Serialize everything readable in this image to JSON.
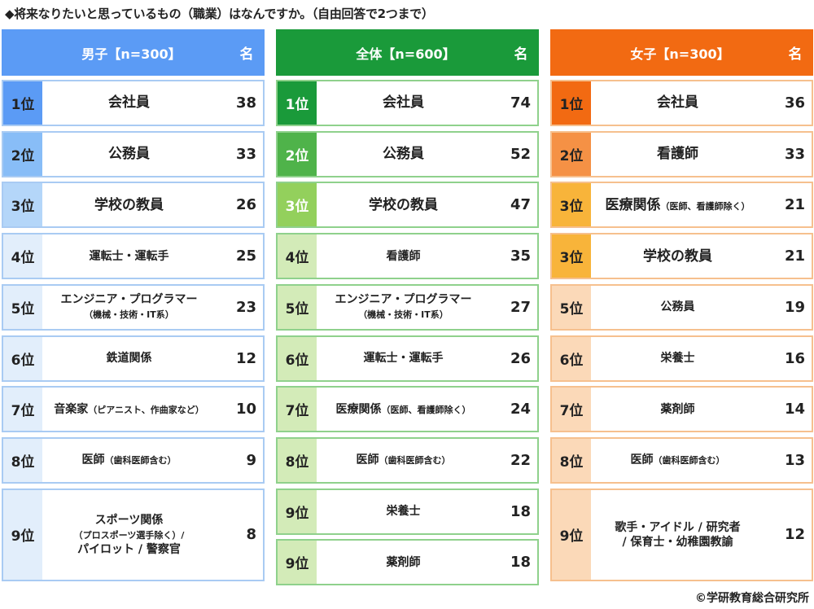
{
  "title": "◆将来なりたいと思っているもの（職業）はなんですか。（自由回答で2つまで）",
  "copyright": "©学研教育総合研究所",
  "columns": [
    {
      "key": "boys",
      "header": "男子【n=300】",
      "unit": "名",
      "header_color": "#5b9bf5",
      "border_color": "#a9cbf3",
      "rows": [
        {
          "rank": "1位",
          "job": "会社員",
          "sub": "",
          "count": "38",
          "rank_bg": "#5b9bf5",
          "rank_fg": "#222",
          "big": true
        },
        {
          "rank": "2位",
          "job": "公務員",
          "sub": "",
          "count": "33",
          "rank_bg": "#88bdf7",
          "rank_fg": "#222",
          "big": true
        },
        {
          "rank": "3位",
          "job": "学校の教員",
          "sub": "",
          "count": "26",
          "rank_bg": "#b4d6f9",
          "rank_fg": "#222",
          "big": true
        },
        {
          "rank": "4位",
          "job": "運転士・運転手",
          "sub": "",
          "count": "25",
          "rank_bg": "#e2eefb",
          "rank_fg": "#222",
          "big": false
        },
        {
          "rank": "5位",
          "job": "エンジニア・プログラマー",
          "sub": "（機械・技術・IT系）",
          "count": "23",
          "rank_bg": "#e2eefb",
          "rank_fg": "#222",
          "big": false
        },
        {
          "rank": "6位",
          "job": "鉄道関係",
          "sub": "",
          "count": "12",
          "rank_bg": "#e2eefb",
          "rank_fg": "#222",
          "big": false
        },
        {
          "rank": "7位",
          "job": "音楽家",
          "sub": "（ピアニスト、作曲家など）",
          "count": "10",
          "rank_bg": "#e2eefb",
          "rank_fg": "#222",
          "big": false,
          "inline_sub": true
        },
        {
          "rank": "8位",
          "job": "医師",
          "sub": "（歯科医師含む）",
          "count": "9",
          "rank_bg": "#e2eefb",
          "rank_fg": "#222",
          "big": false,
          "inline_sub": true
        },
        {
          "rank": "9位",
          "job": "スポーツ関係",
          "sub": "（プロスポーツ選手除く）/",
          "sub2": "パイロット / 警察官",
          "count": "8",
          "rank_bg": "#e2eefb",
          "rank_fg": "#222",
          "big": false,
          "tall": true
        }
      ]
    },
    {
      "key": "all",
      "header": "全体【n=600】",
      "unit": "名",
      "header_color": "#1a9a3a",
      "border_color": "#8fd18c",
      "rows": [
        {
          "rank": "1位",
          "job": "会社員",
          "sub": "",
          "count": "74",
          "rank_bg": "#1a9a3a",
          "rank_fg": "#ffffff",
          "big": true
        },
        {
          "rank": "2位",
          "job": "公務員",
          "sub": "",
          "count": "52",
          "rank_bg": "#4fb34a",
          "rank_fg": "#ffffff",
          "big": true
        },
        {
          "rank": "3位",
          "job": "学校の教員",
          "sub": "",
          "count": "47",
          "rank_bg": "#93d05c",
          "rank_fg": "#ffffff",
          "big": true
        },
        {
          "rank": "4位",
          "job": "看護師",
          "sub": "",
          "count": "35",
          "rank_bg": "#d3ebb8",
          "rank_fg": "#222",
          "big": false
        },
        {
          "rank": "5位",
          "job": "エンジニア・プログラマー",
          "sub": "（機械・技術・IT系）",
          "count": "27",
          "rank_bg": "#d3ebb8",
          "rank_fg": "#222",
          "big": false
        },
        {
          "rank": "6位",
          "job": "運転士・運転手",
          "sub": "",
          "count": "26",
          "rank_bg": "#d3ebb8",
          "rank_fg": "#222",
          "big": false
        },
        {
          "rank": "7位",
          "job": "医療関係",
          "sub": "（医師、看護師除く）",
          "count": "24",
          "rank_bg": "#d3ebb8",
          "rank_fg": "#222",
          "big": false,
          "inline_sub": true
        },
        {
          "rank": "8位",
          "job": "医師",
          "sub": "（歯科医師含む）",
          "count": "22",
          "rank_bg": "#d3ebb8",
          "rank_fg": "#222",
          "big": false,
          "inline_sub": true
        },
        {
          "rank": "9位",
          "job": "栄養士",
          "sub": "",
          "count": "18",
          "rank_bg": "#d3ebb8",
          "rank_fg": "#222",
          "big": false
        },
        {
          "rank": "9位",
          "job": "薬剤師",
          "sub": "",
          "count": "18",
          "rank_bg": "#d3ebb8",
          "rank_fg": "#222",
          "big": false
        }
      ]
    },
    {
      "key": "girls",
      "header": "女子【n=300】",
      "unit": "名",
      "header_color": "#f26a12",
      "border_color": "#f6c08e",
      "rows": [
        {
          "rank": "1位",
          "job": "会社員",
          "sub": "",
          "count": "36",
          "rank_bg": "#f26a12",
          "rank_fg": "#222",
          "big": true
        },
        {
          "rank": "2位",
          "job": "看護師",
          "sub": "",
          "count": "33",
          "rank_bg": "#f59145",
          "rank_fg": "#222",
          "big": true
        },
        {
          "rank": "3位",
          "job": "医療関係",
          "sub": "（医師、看護師除く）",
          "count": "21",
          "rank_bg": "#f8b43a",
          "rank_fg": "#222",
          "big": true,
          "inline_sub": true
        },
        {
          "rank": "3位",
          "job": "学校の教員",
          "sub": "",
          "count": "21",
          "rank_bg": "#f8b43a",
          "rank_fg": "#222",
          "big": true
        },
        {
          "rank": "5位",
          "job": "公務員",
          "sub": "",
          "count": "19",
          "rank_bg": "#fbd9b8",
          "rank_fg": "#222",
          "big": false
        },
        {
          "rank": "6位",
          "job": "栄養士",
          "sub": "",
          "count": "16",
          "rank_bg": "#fbd9b8",
          "rank_fg": "#222",
          "big": false
        },
        {
          "rank": "7位",
          "job": "薬剤師",
          "sub": "",
          "count": "14",
          "rank_bg": "#fbd9b8",
          "rank_fg": "#222",
          "big": false
        },
        {
          "rank": "8位",
          "job": "医師",
          "sub": "（歯科医師含む）",
          "count": "13",
          "rank_bg": "#fbd9b8",
          "rank_fg": "#222",
          "big": false,
          "inline_sub": true
        },
        {
          "rank": "9位",
          "job": "歌手・アイドル / 研究者",
          "sub": "",
          "sub2": "/ 保育士・幼稚園教諭",
          "count": "12",
          "rank_bg": "#fbd9b8",
          "rank_fg": "#222",
          "big": false,
          "tall": true,
          "sub2_same_size": true
        }
      ]
    }
  ]
}
